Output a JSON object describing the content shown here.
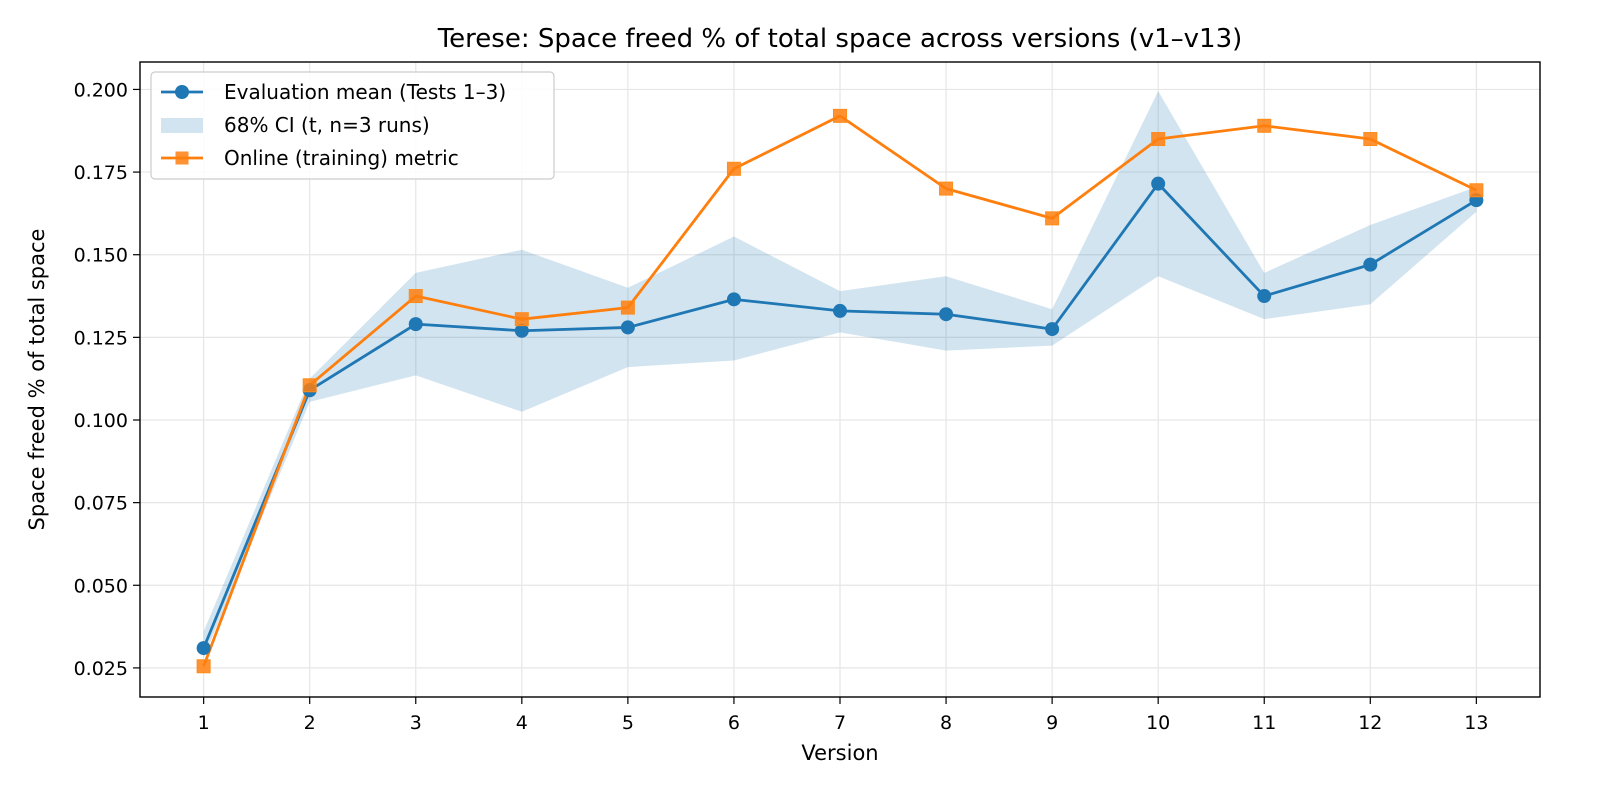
{
  "chart_data": {
    "type": "line",
    "title": "Terese: Space freed % of total space across versions (v1–v13)",
    "xlabel": "Version",
    "ylabel": "Space freed % of total space",
    "x": [
      1,
      2,
      3,
      4,
      5,
      6,
      7,
      8,
      9,
      10,
      11,
      12,
      13
    ],
    "xlim": [
      0.4,
      13.6
    ],
    "ylim": [
      0.0162,
      0.2083
    ],
    "yticks": [
      0.025,
      0.05,
      0.075,
      0.1,
      0.125,
      0.15,
      0.175,
      0.2
    ],
    "ytick_labels": [
      "0.025",
      "0.050",
      "0.075",
      "0.100",
      "0.125",
      "0.150",
      "0.175",
      "0.200"
    ],
    "xtick_labels": [
      "1",
      "2",
      "3",
      "4",
      "5",
      "6",
      "7",
      "8",
      "9",
      "10",
      "11",
      "12",
      "13"
    ],
    "grid": true,
    "legend_position": "top-left",
    "series": [
      {
        "name": "Evaluation mean (Tests 1–3)",
        "kind": "line-marker-circle",
        "color": "#1f77b4",
        "values": [
          0.031,
          0.109,
          0.129,
          0.127,
          0.128,
          0.1365,
          0.133,
          0.132,
          0.1275,
          0.1715,
          0.1375,
          0.147,
          0.1665
        ]
      },
      {
        "name": "68% CI (t, n=3 runs)",
        "kind": "band",
        "color": "#1f77b4",
        "lower": [
          0.028,
          0.1055,
          0.1135,
          0.1025,
          0.116,
          0.118,
          0.1265,
          0.121,
          0.1225,
          0.1435,
          0.1305,
          0.135,
          0.163
        ],
        "upper": [
          0.036,
          0.1125,
          0.1445,
          0.1515,
          0.14,
          0.1555,
          0.139,
          0.1435,
          0.1335,
          0.1995,
          0.1445,
          0.159,
          0.1705
        ]
      },
      {
        "name": "Online (training) metric",
        "kind": "line-marker-square",
        "color": "#ff7f0e",
        "values": [
          0.0255,
          0.1105,
          0.1375,
          0.1305,
          0.134,
          0.176,
          0.192,
          0.17,
          0.161,
          0.185,
          0.189,
          0.185,
          0.1695
        ]
      }
    ]
  }
}
